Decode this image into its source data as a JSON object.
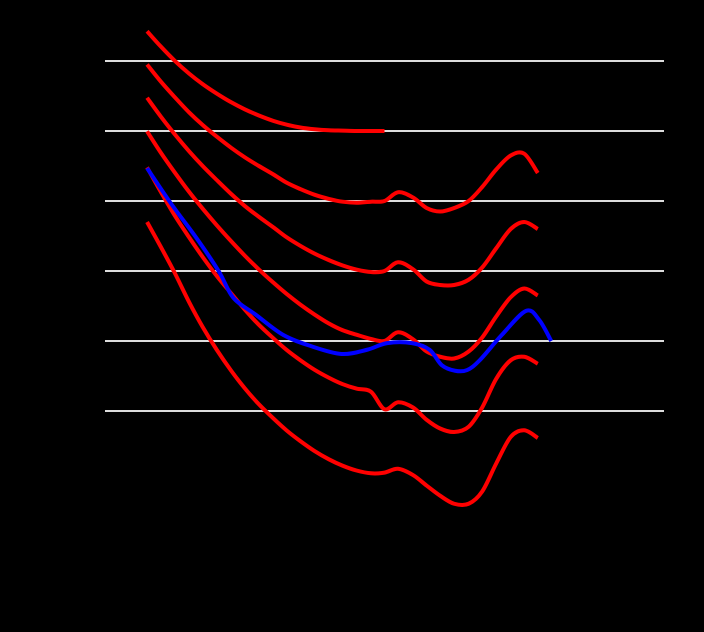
{
  "chart_data": {
    "type": "line",
    "title": "",
    "xlabel": "",
    "ylabel": "",
    "x_scale": "log",
    "xlim": [
      10,
      100000
    ],
    "ylim": [
      -20,
      130
    ],
    "grid": {
      "horizontal": true,
      "vertical": false,
      "y_lines": [
        20,
        40,
        60,
        80,
        100,
        120
      ]
    },
    "legend": "none",
    "background": "#000000",
    "grid_color": "#dddddd",
    "series": [
      {
        "color": "#ff0000",
        "x": [
          20,
          25,
          31.5,
          40,
          50,
          63,
          80,
          100,
          125,
          160,
          200,
          250,
          315,
          400,
          500,
          630,
          800,
          1000,
          1250,
          1600,
          2000,
          2500,
          3150,
          4000,
          5000,
          6300,
          8000,
          10000,
          12500
        ],
        "y": [
          74,
          67,
          59.5,
          51.1,
          44,
          37.5,
          31.5,
          26.5,
          22.1,
          17.9,
          14.4,
          11.4,
          8.6,
          6.2,
          4.4,
          3,
          2.2,
          2.4,
          3.5,
          1.7,
          -1.3,
          -4.2,
          -6.5,
          -6.5,
          -3,
          5,
          12.6,
          14.5,
          12.3
        ]
      },
      {
        "color": "#ff0000",
        "x": [
          20,
          25,
          31.5,
          40,
          50,
          63,
          80,
          100,
          125,
          160,
          200,
          250,
          315,
          400,
          500,
          630,
          800,
          1000,
          1250,
          1600,
          2000,
          2500,
          3150,
          4000,
          5000,
          6300,
          8000,
          10000,
          12500
        ],
        "y": [
          89.6,
          82.7,
          75.9,
          69.6,
          64,
          58.6,
          53.6,
          49,
          44.8,
          40.8,
          37.4,
          34.5,
          31.8,
          29.5,
          27.7,
          26.4,
          25.5,
          20.5,
          22.5,
          21,
          17.5,
          15,
          14,
          15.5,
          21,
          29.2,
          34.5,
          35.5,
          33.5
        ]
      },
      {
        "color": "#ff0000",
        "x": [
          20,
          25,
          31.5,
          40,
          50,
          63,
          80,
          100,
          125,
          160,
          200,
          250,
          315,
          400,
          500,
          630,
          800,
          1000,
          1250,
          1600,
          2000,
          2500,
          3150,
          4000,
          5000,
          6300,
          8000,
          10000,
          12500
        ],
        "y": [
          99.9,
          93.9,
          88.2,
          82.6,
          77.8,
          73.1,
          68.5,
          64.4,
          60.6,
          56.7,
          53.4,
          50.4,
          47.6,
          45,
          43.1,
          41.8,
          40.6,
          40,
          42.5,
          40.5,
          37,
          35.5,
          35,
          37,
          41,
          47,
          52.5,
          55,
          53
        ]
      },
      {
        "color": "#ff0000",
        "x": [
          20,
          25,
          31.5,
          40,
          50,
          63,
          80,
          100,
          125,
          160,
          200,
          250,
          315,
          400,
          500,
          630,
          800,
          1000,
          1250,
          1600,
          2000,
          2500,
          3150,
          4000,
          5000,
          6300,
          8000,
          10000,
          12500
        ],
        "y": [
          109.5,
          104.2,
          99.1,
          94.2,
          90,
          86,
          82,
          78.6,
          75.6,
          72.5,
          69.6,
          67.2,
          65,
          63.1,
          61.6,
          60.4,
          59.7,
          60,
          62.5,
          60.5,
          57,
          56,
          56,
          57.5,
          61,
          66.5,
          72,
          74,
          72
        ]
      },
      {
        "color": "#ff0000",
        "x": [
          20,
          25,
          31.5,
          40,
          50,
          63,
          80,
          100,
          125,
          160,
          200,
          250,
          315,
          400,
          500,
          630,
          800,
          1000,
          1250,
          1600,
          2000,
          2500,
          3150,
          4000,
          5000,
          6300,
          8000,
          10000,
          12500
        ],
        "y": [
          119,
          114.2,
          109.7,
          105.3,
          101.7,
          98.4,
          95.2,
          92.5,
          90.1,
          87.6,
          85.2,
          83.4,
          81.8,
          80.6,
          79.8,
          79.5,
          79.8,
          80,
          82.5,
          81,
          78,
          77,
          78,
          80,
          84,
          89,
          93,
          93.5,
          88
        ]
      },
      {
        "color": "#ff0000",
        "x": [
          20,
          25,
          31.5,
          40,
          50,
          63,
          80,
          100,
          125,
          160,
          200,
          250,
          315,
          400,
          500,
          630,
          800,
          1000
        ],
        "y": [
          128.5,
          124.2,
          120.1,
          116.4,
          113.4,
          110.7,
          108.2,
          106.2,
          104.5,
          102.9,
          101.8,
          101,
          100.5,
          100.2,
          100.1,
          100,
          100,
          100
        ]
      },
      {
        "color": "#0000ff",
        "x": [
          20,
          30,
          45,
          65,
          83,
          120,
          189,
          300,
          492,
          750,
          1045,
          1570,
          2100,
          2570,
          3200,
          3900,
          4800,
          6900,
          10300,
          12800,
          15600
        ],
        "y": [
          89.4,
          79,
          69.5,
          60,
          52.3,
          47.5,
          41.7,
          38.5,
          36.3,
          37.5,
          39.4,
          39.4,
          37.5,
          33.1,
          31.5,
          31.7,
          34.5,
          41.7,
          48.6,
          46,
          40
        ]
      }
    ]
  }
}
